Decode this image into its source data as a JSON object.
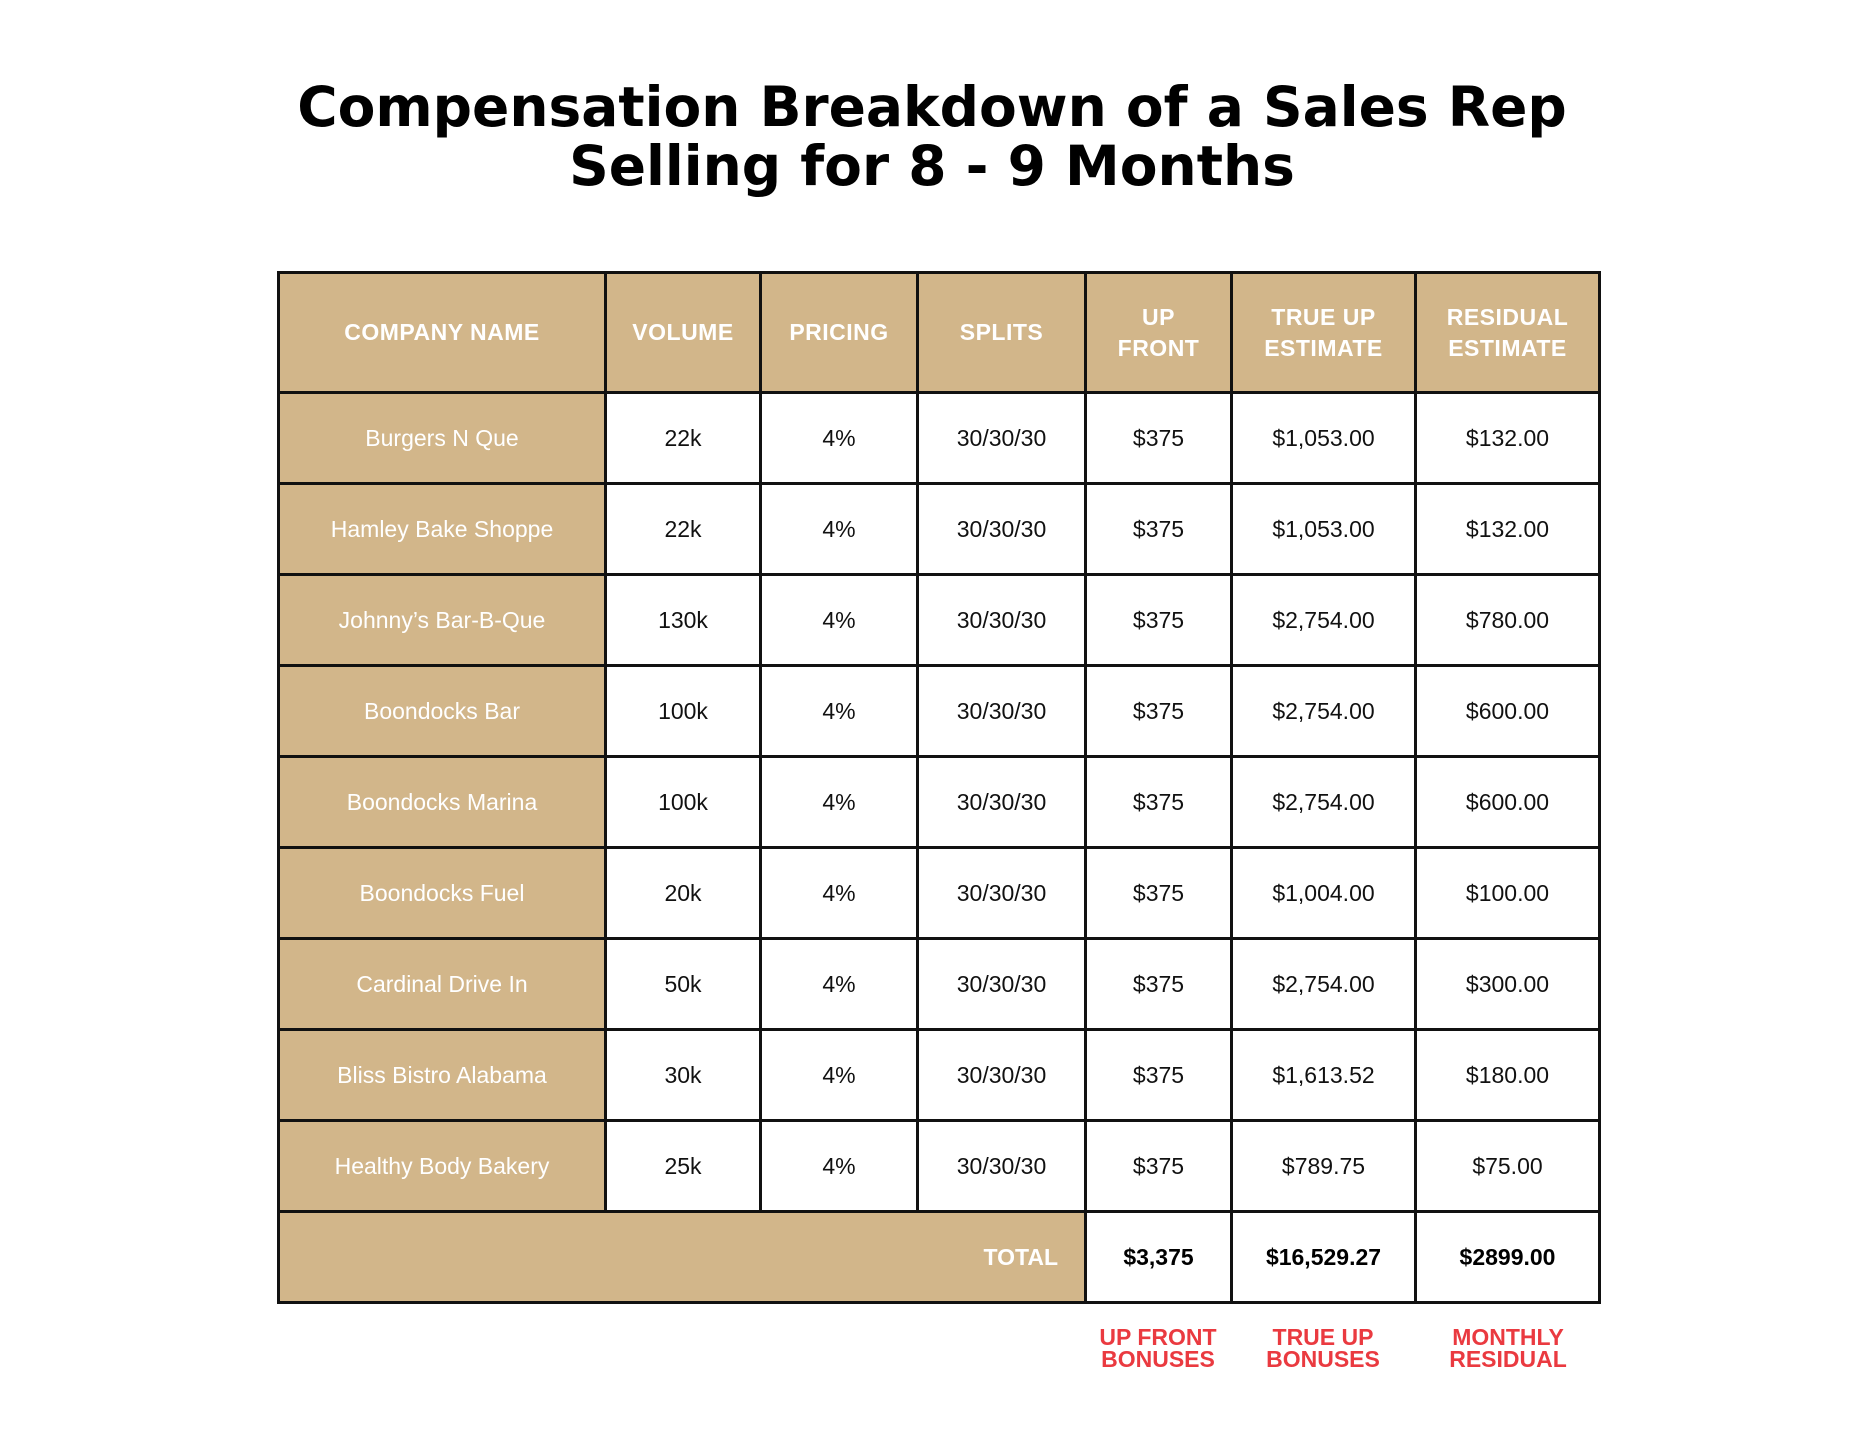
{
  "title": {
    "line1": "Compensation Breakdown of a Sales Rep",
    "line2": "Selling for 8 - 9 Months"
  },
  "table": {
    "headers": {
      "company": "COMPANY NAME",
      "volume": "VOLUME",
      "pricing": "PRICING",
      "splits": "SPLITS",
      "upfront_1": "UP",
      "upfront_2": "FRONT",
      "trueup_1": "TRUE UP",
      "trueup_2": "ESTIMATE",
      "residual_1": "RESIDUAL",
      "residual_2": "ESTIMATE"
    },
    "rows": [
      {
        "company": "Burgers N Que",
        "volume": "22k",
        "pricing": "4%",
        "splits": "30/30/30",
        "upfront": "$375",
        "trueup": "$1,053.00",
        "residual": "$132.00"
      },
      {
        "company": "Hamley Bake Shoppe",
        "volume": "22k",
        "pricing": "4%",
        "splits": "30/30/30",
        "upfront": "$375",
        "trueup": "$1,053.00",
        "residual": "$132.00"
      },
      {
        "company": "Johnny’s Bar-B-Que",
        "volume": "130k",
        "pricing": "4%",
        "splits": "30/30/30",
        "upfront": "$375",
        "trueup": "$2,754.00",
        "residual": "$780.00"
      },
      {
        "company": "Boondocks Bar",
        "volume": "100k",
        "pricing": "4%",
        "splits": "30/30/30",
        "upfront": "$375",
        "trueup": "$2,754.00",
        "residual": "$600.00"
      },
      {
        "company": "Boondocks Marina",
        "volume": "100k",
        "pricing": "4%",
        "splits": "30/30/30",
        "upfront": "$375",
        "trueup": "$2,754.00",
        "residual": "$600.00"
      },
      {
        "company": "Boondocks Fuel",
        "volume": "20k",
        "pricing": "4%",
        "splits": "30/30/30",
        "upfront": "$375",
        "trueup": "$1,004.00",
        "residual": "$100.00"
      },
      {
        "company": "Cardinal Drive In",
        "volume": "50k",
        "pricing": "4%",
        "splits": "30/30/30",
        "upfront": "$375",
        "trueup": "$2,754.00",
        "residual": "$300.00"
      },
      {
        "company": "Bliss Bistro Alabama",
        "volume": "30k",
        "pricing": "4%",
        "splits": "30/30/30",
        "upfront": "$375",
        "trueup": "$1,613.52",
        "residual": "$180.00"
      },
      {
        "company": "Healthy Body Bakery",
        "volume": "25k",
        "pricing": "4%",
        "splits": "30/30/30",
        "upfront": "$375",
        "trueup": "$789.75",
        "residual": "$75.00"
      }
    ],
    "total": {
      "label": "TOTAL",
      "upfront": "$3,375",
      "trueup": "$16,529.27",
      "residual": "$2899.00"
    }
  },
  "notes": {
    "upfront_1": "UP FRONT",
    "upfront_2": "BONUSES",
    "trueup_1": "TRUE UP",
    "trueup_2": "BONUSES",
    "residual_1": "MONTHLY",
    "residual_2": "RESIDUAL"
  },
  "colors": {
    "header_fill": "#d2b68a",
    "grid_line": "#111111",
    "note_text": "#ea3a40"
  }
}
